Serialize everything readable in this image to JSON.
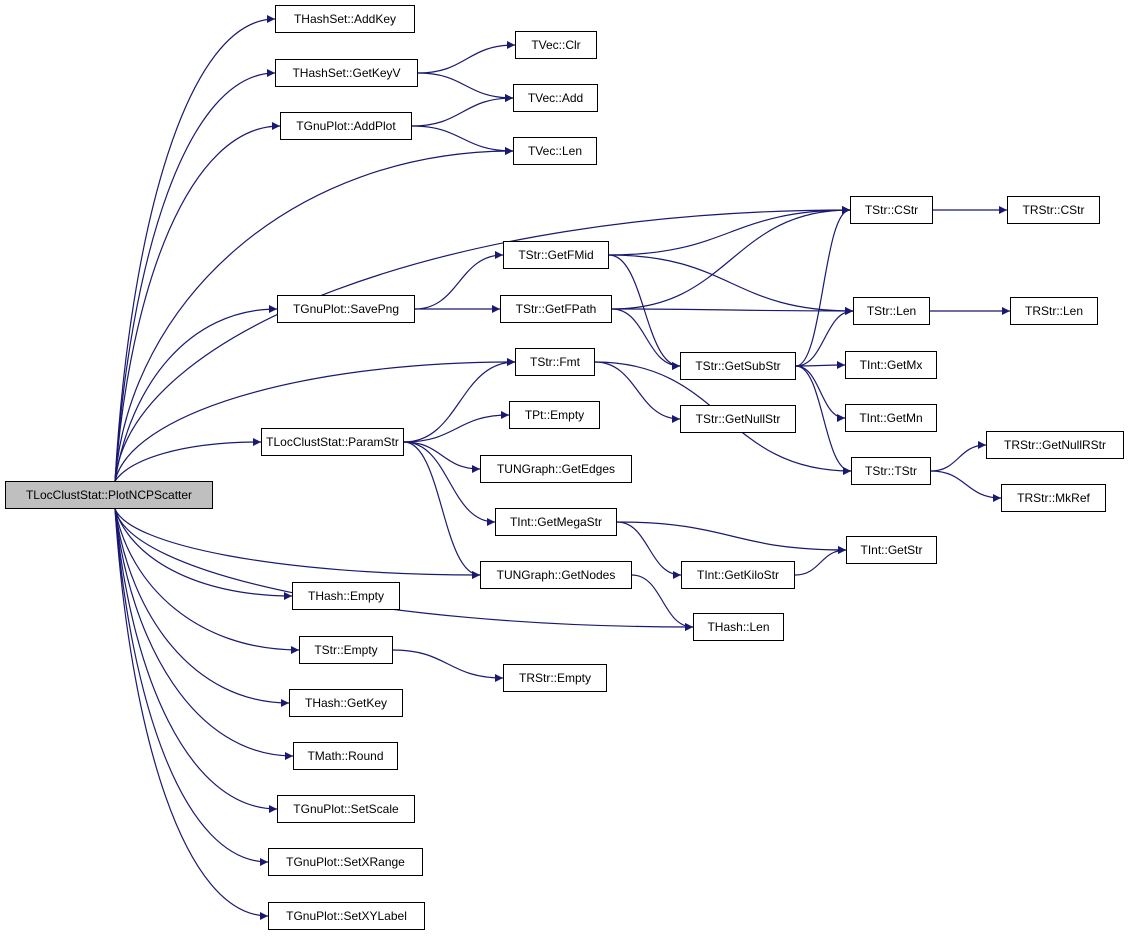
{
  "colors": {
    "edge": "#191970",
    "root_fill": "#bfbfbf",
    "node_border": "#000000"
  },
  "nodes": [
    {
      "id": "root",
      "label": "TLocClustStat::PlotNCPScatter"
    },
    {
      "id": "hs_addkey",
      "label": "THashSet::AddKey"
    },
    {
      "id": "hs_getkeyv",
      "label": "THashSet::GetKeyV"
    },
    {
      "id": "gp_addplot",
      "label": "TGnuPlot::AddPlot"
    },
    {
      "id": "gp_savepng",
      "label": "TGnuPlot::SavePng"
    },
    {
      "id": "lcs_paramstr",
      "label": "TLocClustStat::ParamStr"
    },
    {
      "id": "h_empty",
      "label": "THash::Empty"
    },
    {
      "id": "s_empty",
      "label": "TStr::Empty"
    },
    {
      "id": "h_getkey",
      "label": "THash::GetKey"
    },
    {
      "id": "m_round",
      "label": "TMath::Round"
    },
    {
      "id": "gp_setscale",
      "label": "TGnuPlot::SetScale"
    },
    {
      "id": "gp_setxrange",
      "label": "TGnuPlot::SetXRange"
    },
    {
      "id": "gp_setxylabel",
      "label": "TGnuPlot::SetXYLabel"
    },
    {
      "id": "v_clr",
      "label": "TVec::Clr"
    },
    {
      "id": "v_add",
      "label": "TVec::Add"
    },
    {
      "id": "v_len",
      "label": "TVec::Len"
    },
    {
      "id": "s_getfmid",
      "label": "TStr::GetFMid"
    },
    {
      "id": "s_getfpath",
      "label": "TStr::GetFPath"
    },
    {
      "id": "s_fmt",
      "label": "TStr::Fmt"
    },
    {
      "id": "pt_empty",
      "label": "TPt::Empty"
    },
    {
      "id": "ug_getedges",
      "label": "TUNGraph::GetEdges"
    },
    {
      "id": "i_getmegastr",
      "label": "TInt::GetMegaStr"
    },
    {
      "id": "ug_getnodes",
      "label": "TUNGraph::GetNodes"
    },
    {
      "id": "rs_empty",
      "label": "TRStr::Empty"
    },
    {
      "id": "s_cstr",
      "label": "TStr::CStr"
    },
    {
      "id": "s_len",
      "label": "TStr::Len"
    },
    {
      "id": "s_getsubstr",
      "label": "TStr::GetSubStr"
    },
    {
      "id": "s_getnullstr",
      "label": "TStr::GetNullStr"
    },
    {
      "id": "i_getmx",
      "label": "TInt::GetMx"
    },
    {
      "id": "i_getmn",
      "label": "TInt::GetMn"
    },
    {
      "id": "s_tstr",
      "label": "TStr::TStr"
    },
    {
      "id": "i_getstr",
      "label": "TInt::GetStr"
    },
    {
      "id": "i_getkilostr",
      "label": "TInt::GetKiloStr"
    },
    {
      "id": "h_len",
      "label": "THash::Len"
    },
    {
      "id": "rs_cstr",
      "label": "TRStr::CStr"
    },
    {
      "id": "rs_len",
      "label": "TRStr::Len"
    },
    {
      "id": "rs_getnullrstr",
      "label": "TRStr::GetNullRStr"
    },
    {
      "id": "rs_mkref",
      "label": "TRStr::MkRef"
    }
  ],
  "edges": [
    [
      "root",
      "hs_addkey"
    ],
    [
      "root",
      "hs_getkeyv"
    ],
    [
      "root",
      "gp_addplot"
    ],
    [
      "root",
      "v_len"
    ],
    [
      "root",
      "s_cstr"
    ],
    [
      "root",
      "gp_savepng"
    ],
    [
      "root",
      "s_fmt"
    ],
    [
      "root",
      "lcs_paramstr"
    ],
    [
      "root",
      "ug_getnodes"
    ],
    [
      "root",
      "h_len"
    ],
    [
      "root",
      "h_empty"
    ],
    [
      "root",
      "s_empty"
    ],
    [
      "root",
      "h_getkey"
    ],
    [
      "root",
      "m_round"
    ],
    [
      "root",
      "gp_setscale"
    ],
    [
      "root",
      "gp_setxrange"
    ],
    [
      "root",
      "gp_setxylabel"
    ],
    [
      "hs_getkeyv",
      "v_clr"
    ],
    [
      "hs_getkeyv",
      "v_add"
    ],
    [
      "gp_addplot",
      "v_add"
    ],
    [
      "gp_addplot",
      "v_len"
    ],
    [
      "gp_savepng",
      "s_getfmid"
    ],
    [
      "gp_savepng",
      "s_getfpath"
    ],
    [
      "s_getfmid",
      "s_cstr"
    ],
    [
      "s_getfmid",
      "s_len"
    ],
    [
      "s_getfmid",
      "s_getsubstr"
    ],
    [
      "s_getfpath",
      "s_cstr"
    ],
    [
      "s_getfpath",
      "s_len"
    ],
    [
      "s_getfpath",
      "s_getsubstr"
    ],
    [
      "s_getsubstr",
      "s_cstr"
    ],
    [
      "s_getsubstr",
      "s_len"
    ],
    [
      "s_getsubstr",
      "i_getmx"
    ],
    [
      "s_getsubstr",
      "i_getmn"
    ],
    [
      "s_getsubstr",
      "s_tstr"
    ],
    [
      "s_fmt",
      "s_getnullstr"
    ],
    [
      "s_fmt",
      "s_tstr"
    ],
    [
      "lcs_paramstr",
      "s_fmt"
    ],
    [
      "lcs_paramstr",
      "pt_empty"
    ],
    [
      "lcs_paramstr",
      "ug_getedges"
    ],
    [
      "lcs_paramstr",
      "i_getmegastr"
    ],
    [
      "lcs_paramstr",
      "ug_getnodes"
    ],
    [
      "i_getmegastr",
      "i_getstr"
    ],
    [
      "i_getmegastr",
      "i_getkilostr"
    ],
    [
      "i_getkilostr",
      "i_getstr"
    ],
    [
      "ug_getnodes",
      "h_len"
    ],
    [
      "s_empty",
      "rs_empty"
    ],
    [
      "s_cstr",
      "rs_cstr"
    ],
    [
      "s_len",
      "rs_len"
    ],
    [
      "s_tstr",
      "rs_getnullrstr"
    ],
    [
      "s_tstr",
      "rs_mkref"
    ]
  ]
}
